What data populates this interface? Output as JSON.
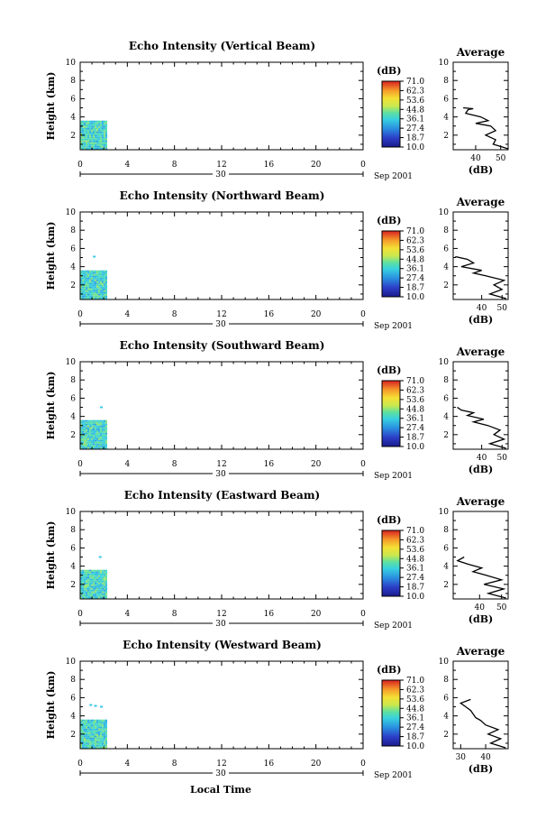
{
  "figure": {
    "bottom_xlabel": "Local Time",
    "colorbar_unit": "(dB)",
    "colorbar_ticks": [
      "71.0",
      "62.3",
      "53.6",
      "44.8",
      "36.1",
      "27.4",
      "18.7",
      "10.0"
    ],
    "date_day": "30",
    "date_month": "Sep 2001",
    "avg_title": "Average",
    "avg_xlabel": "(dB)",
    "height_label": "Height (km)"
  },
  "chart_data": [
    {
      "type": "heatmap",
      "title": "Echo Intensity (Vertical Beam)",
      "ylabel": "Height (km)",
      "xlabel": "",
      "xticks": [
        "0",
        "4",
        "8",
        "12",
        "16",
        "20",
        "0"
      ],
      "yticks": [
        "2",
        "4",
        "6",
        "8",
        "10"
      ],
      "xlim": [
        0,
        24
      ],
      "ylim": [
        0.4,
        10
      ],
      "colorbar": {
        "unit": "(dB)",
        "min": 10.0,
        "max": 71.0
      },
      "data_extent": {
        "time_hours": [
          0,
          2.2
        ],
        "height_km": [
          0.5,
          3.6
        ],
        "typical_db": [
          30,
          45
        ]
      },
      "isolated_echoes": [],
      "average_profile": {
        "title": "Average",
        "xlabel": "(dB)",
        "xticks": [
          "40",
          "50"
        ],
        "xlim": [
          31,
          53
        ],
        "heights": [
          0.5,
          1.0,
          1.5,
          2.0,
          2.5,
          3.0,
          3.3,
          3.6,
          4.0,
          4.4,
          4.8,
          4.9,
          5.0
        ],
        "values": [
          53,
          47,
          48,
          44,
          48,
          46,
          40,
          45,
          42,
          36,
          37,
          39,
          35
        ]
      }
    },
    {
      "type": "heatmap",
      "title": "Echo Intensity (Northward Beam)",
      "ylabel": "Height (km)",
      "xlabel": "",
      "xticks": [
        "0",
        "4",
        "8",
        "12",
        "16",
        "20",
        "0"
      ],
      "yticks": [
        "2",
        "4",
        "6",
        "8",
        "10"
      ],
      "xlim": [
        0,
        24
      ],
      "ylim": [
        0.4,
        10
      ],
      "colorbar": {
        "unit": "(dB)",
        "min": 10.0,
        "max": 71.0
      },
      "data_extent": {
        "time_hours": [
          0,
          2.2
        ],
        "height_km": [
          0.5,
          3.6
        ],
        "typical_db": [
          30,
          45
        ]
      },
      "isolated_echoes": [
        {
          "time": 1.2,
          "height": 5.1
        }
      ],
      "average_profile": {
        "title": "Average",
        "xlabel": "(dB)",
        "xticks": [
          "40",
          "50"
        ],
        "xlim": [
          26,
          53
        ],
        "heights": [
          0.5,
          1.0,
          1.5,
          2.0,
          2.5,
          3.0,
          3.3,
          3.6,
          4.0,
          4.4,
          4.8,
          5.1
        ],
        "values": [
          52,
          44,
          50,
          46,
          51,
          42,
          36,
          40,
          30,
          36,
          33,
          27
        ]
      }
    },
    {
      "type": "heatmap",
      "title": "Echo Intensity (Southward Beam)",
      "ylabel": "Height (km)",
      "xlabel": "",
      "xticks": [
        "0",
        "4",
        "8",
        "12",
        "16",
        "20",
        "0"
      ],
      "yticks": [
        "2",
        "4",
        "6",
        "8",
        "10"
      ],
      "xlim": [
        0,
        24
      ],
      "ylim": [
        0.4,
        10
      ],
      "colorbar": {
        "unit": "(dB)",
        "min": 10.0,
        "max": 71.0
      },
      "data_extent": {
        "time_hours": [
          0,
          2.2
        ],
        "height_km": [
          0.5,
          3.6
        ],
        "typical_db": [
          30,
          45
        ]
      },
      "isolated_echoes": [
        {
          "time": 1.8,
          "height": 5.0
        }
      ],
      "average_profile": {
        "title": "Average",
        "xlabel": "(dB)",
        "xticks": [
          "40",
          "50"
        ],
        "xlim": [
          26,
          53
        ],
        "heights": [
          0.5,
          1.0,
          1.5,
          2.0,
          2.5,
          3.0,
          3.4,
          3.7,
          4.1,
          4.4,
          4.7,
          5.0
        ],
        "values": [
          52,
          44,
          51,
          46,
          49,
          43,
          36,
          41,
          33,
          36,
          30,
          28
        ]
      }
    },
    {
      "type": "heatmap",
      "title": "Echo Intensity (Eastward Beam)",
      "ylabel": "Height (km)",
      "xlabel": "",
      "xticks": [
        "0",
        "4",
        "8",
        "12",
        "16",
        "20",
        "0"
      ],
      "yticks": [
        "2",
        "4",
        "6",
        "8",
        "10"
      ],
      "xlim": [
        0,
        24
      ],
      "ylim": [
        0.4,
        10
      ],
      "colorbar": {
        "unit": "(dB)",
        "min": 10.0,
        "max": 71.0
      },
      "data_extent": {
        "time_hours": [
          0,
          2.2
        ],
        "height_km": [
          0.5,
          3.6
        ],
        "typical_db": [
          30,
          45
        ]
      },
      "isolated_echoes": [
        {
          "time": 1.7,
          "height": 5.0
        }
      ],
      "average_profile": {
        "title": "Average",
        "xlabel": "(dB)",
        "xticks": [
          "40",
          "50"
        ],
        "xlim": [
          28,
          53
        ],
        "heights": [
          0.5,
          1.0,
          1.5,
          2.0,
          2.5,
          3.0,
          3.4,
          3.8,
          4.2,
          4.6,
          5.0
        ],
        "values": [
          52,
          44,
          51,
          42,
          50,
          43,
          37,
          41,
          35,
          30,
          33
        ]
      }
    },
    {
      "type": "heatmap",
      "title": "Echo Intensity (Westward Beam)",
      "ylabel": "Height (km)",
      "xlabel": "Local Time",
      "xticks": [
        "0",
        "4",
        "8",
        "12",
        "16",
        "20",
        "0"
      ],
      "yticks": [
        "2",
        "4",
        "6",
        "8",
        "10"
      ],
      "xlim": [
        0,
        24
      ],
      "ylim": [
        0.4,
        10
      ],
      "colorbar": {
        "unit": "(dB)",
        "min": 10.0,
        "max": 71.0
      },
      "data_extent": {
        "time_hours": [
          0,
          2.2
        ],
        "height_km": [
          0.5,
          3.6
        ],
        "typical_db": [
          30,
          45
        ]
      },
      "isolated_echoes": [
        {
          "time": 0.9,
          "height": 5.2
        },
        {
          "time": 1.3,
          "height": 5.1
        },
        {
          "time": 1.8,
          "height": 5.0
        }
      ],
      "average_profile": {
        "title": "Average",
        "xlabel": "(dB)",
        "xticks": [
          "30",
          "40"
        ],
        "xlim": [
          27,
          49
        ],
        "heights": [
          0.5,
          1.0,
          1.5,
          2.0,
          2.5,
          3.0,
          3.5,
          3.8,
          4.2,
          4.6,
          5.0,
          5.4,
          5.8
        ],
        "values": [
          48,
          42,
          46,
          41,
          45,
          40,
          38,
          36,
          35,
          34,
          32,
          30,
          34
        ]
      }
    }
  ]
}
